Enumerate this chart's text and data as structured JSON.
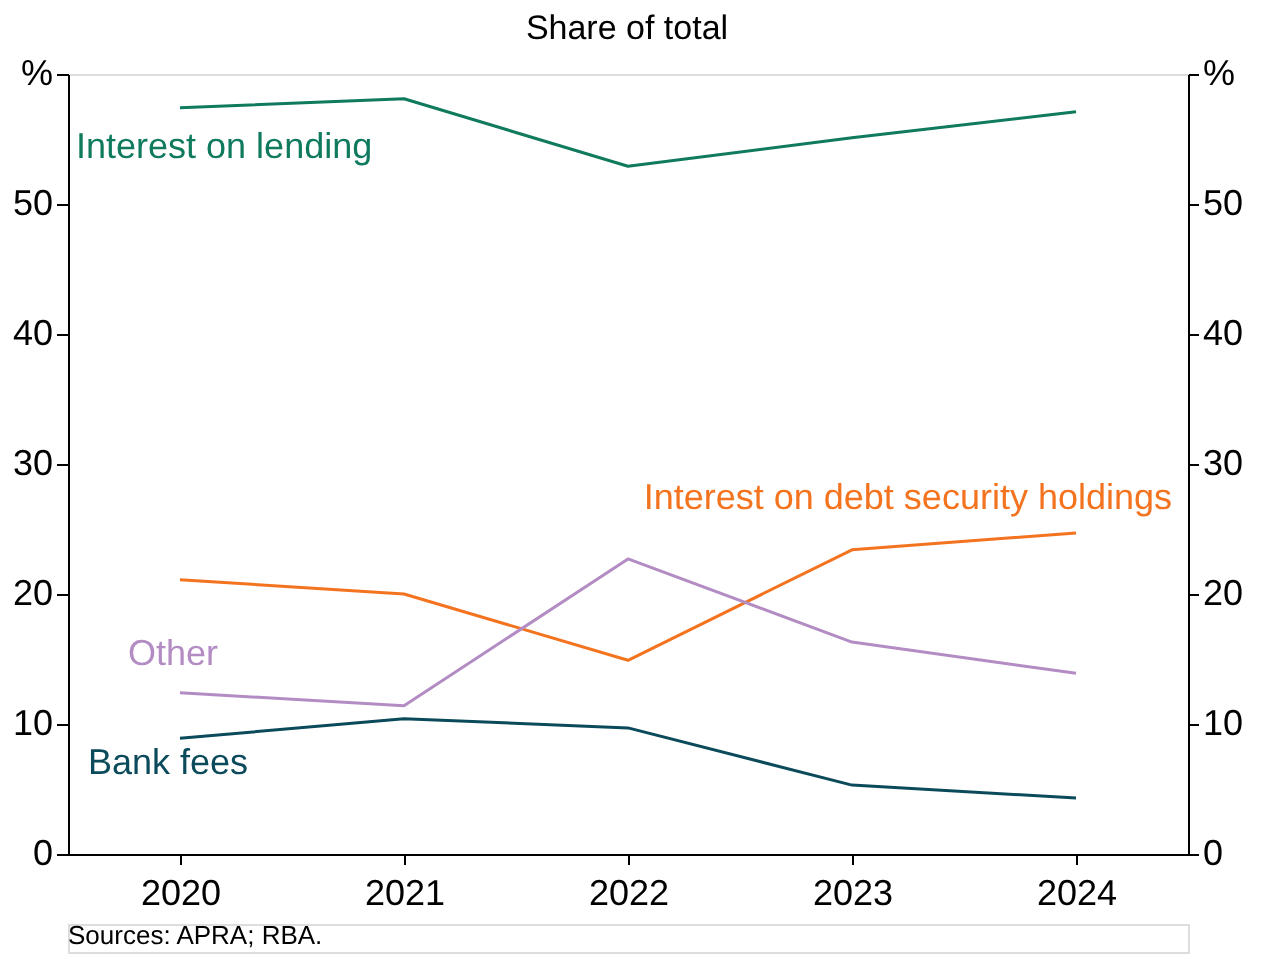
{
  "chart_data": {
    "type": "line",
    "title": "Share of total",
    "categories": [
      "2020",
      "2021",
      "2022",
      "2023",
      "2024"
    ],
    "series": [
      {
        "name": "Interest on lending",
        "color": "#0f7a5e",
        "values": [
          57.4,
          58.1,
          52.9,
          55.1,
          57.1
        ]
      },
      {
        "name": "Interest on debt security holdings",
        "color": "#f4731f",
        "values": [
          21.1,
          20.0,
          14.9,
          23.4,
          24.7
        ]
      },
      {
        "name": "Other",
        "color": "#b38cc4",
        "values": [
          12.4,
          11.4,
          22.7,
          16.3,
          13.9
        ]
      },
      {
        "name": "Bank fees",
        "color": "#0b4a5a",
        "values": [
          8.9,
          10.4,
          9.7,
          5.3,
          4.3
        ]
      }
    ],
    "ylim": [
      0,
      60
    ],
    "yticks": [
      0,
      10,
      20,
      30,
      40,
      50,
      {
        "value": 60,
        "label": "%"
      }
    ],
    "y2lim": [
      0,
      60
    ],
    "y2ticks": [
      0,
      10,
      20,
      30,
      40,
      50,
      {
        "value": 60,
        "label": "%"
      }
    ],
    "grid": false,
    "legend": false,
    "marker": "none",
    "line_style": "solid",
    "annotations": [
      "Sources: APRA; RBA."
    ]
  }
}
